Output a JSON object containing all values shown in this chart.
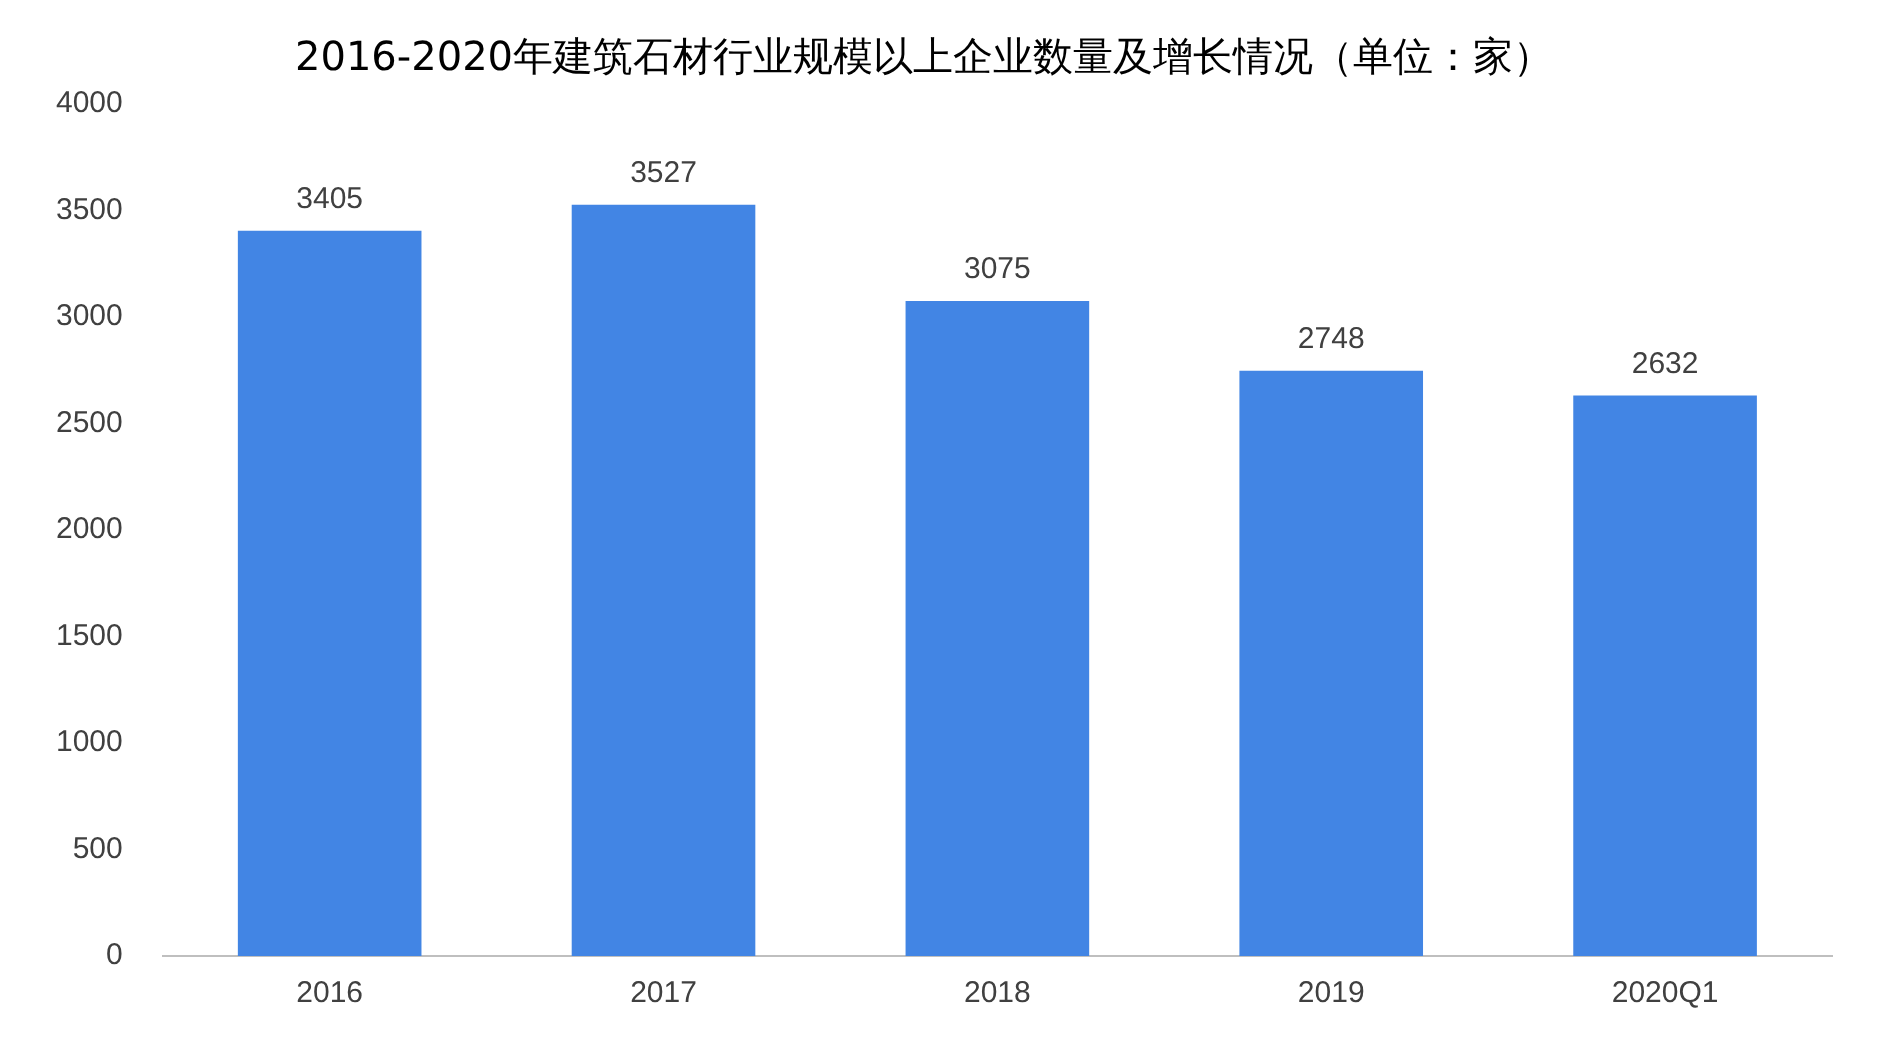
{
  "chart_data": {
    "type": "bar",
    "title": "2016-2020年建筑石材行业规模以上企业数量及增长情况（单位：家）",
    "categories": [
      "2016",
      "2017",
      "2018",
      "2019",
      "2020Q1"
    ],
    "values": [
      3405,
      3527,
      3075,
      2748,
      2632
    ],
    "color": "#4285e4",
    "ylim": [
      0,
      4000
    ],
    "yticks": [
      0,
      500,
      1000,
      1500,
      2000,
      2500,
      3000,
      3500,
      4000
    ],
    "grid": false,
    "data_labels": true,
    "legend": false
  }
}
